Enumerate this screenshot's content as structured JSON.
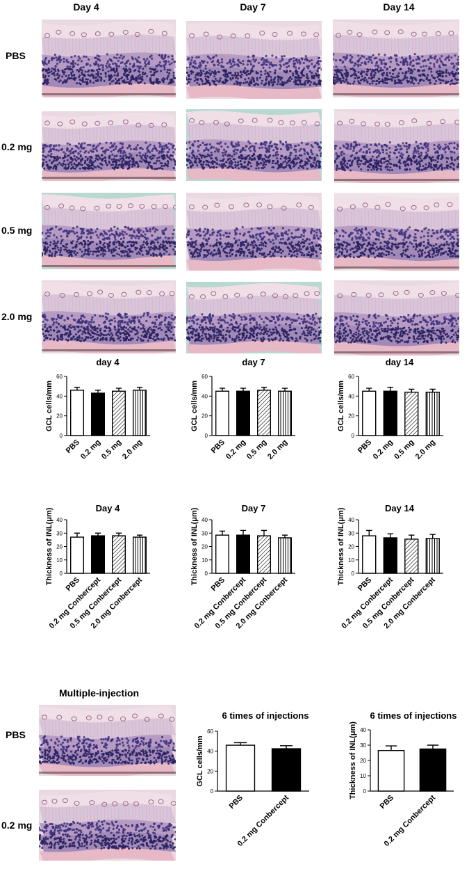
{
  "top_columns": [
    "Day 4",
    "Day 7",
    "Day 14"
  ],
  "top_rows": [
    "PBS",
    "0.2 mg",
    "0.5 mg",
    "2.0 mg"
  ],
  "multi_title": "Multiple-injection",
  "multi_rows": [
    "PBS",
    "0.2 mg"
  ],
  "colors": {
    "pink": "#e6bcc9",
    "lavender": "#c9afd0",
    "nuclei": "#3b2f7a",
    "dark_nuclei": "#2a2060",
    "teal_bg": "#b9d8d2"
  },
  "chart_data": [
    {
      "type": "bar",
      "title": "day 4",
      "ylabel": "GCL cells/mm",
      "ylim": [
        0,
        60
      ],
      "yticks": [
        0,
        20,
        40,
        60
      ],
      "categories": [
        "PBS",
        "0.2 mg",
        "0.5 mg",
        "2.0 mg"
      ],
      "values": [
        46,
        43,
        45,
        46
      ],
      "errors": [
        3,
        3,
        3,
        3
      ],
      "fills": [
        "white",
        "black",
        "diag",
        "vert"
      ]
    },
    {
      "type": "bar",
      "title": "day 7",
      "ylabel": "GCL cells/mm",
      "ylim": [
        0,
        60
      ],
      "yticks": [
        0,
        20,
        40,
        60
      ],
      "categories": [
        "PBS",
        "0.2 mg",
        "0.5 mg",
        "2.0 mg"
      ],
      "values": [
        45,
        45,
        46,
        45
      ],
      "errors": [
        3,
        3,
        3,
        3
      ],
      "fills": [
        "white",
        "black",
        "diag",
        "vert"
      ]
    },
    {
      "type": "bar",
      "title": "day 14",
      "ylabel": "GCL cells/mm",
      "ylim": [
        0,
        60
      ],
      "yticks": [
        0,
        20,
        40,
        60
      ],
      "categories": [
        "PBS",
        "0.2 mg",
        "0.5 mg",
        "2.0 mg"
      ],
      "values": [
        45,
        45,
        44,
        44
      ],
      "errors": [
        3,
        4,
        3,
        3
      ],
      "fills": [
        "white",
        "black",
        "diag",
        "vert"
      ]
    },
    {
      "type": "bar",
      "title": "Day 4",
      "ylabel": "Thickness of INL(μm)",
      "ylim": [
        0,
        40
      ],
      "yticks": [
        0,
        10,
        20,
        30,
        40
      ],
      "categories": [
        "PBS",
        "0.2 mg Conbercept",
        "0.5 mg Conbercept",
        "2.0 mg Conbercept"
      ],
      "values": [
        27,
        28,
        28,
        27
      ],
      "errors": [
        3,
        2,
        2,
        1.5
      ],
      "fills": [
        "white",
        "black",
        "diag",
        "vert"
      ]
    },
    {
      "type": "bar",
      "title": "Day 7",
      "ylabel": "Thickness of INL(μm)",
      "ylim": [
        0,
        40
      ],
      "yticks": [
        0,
        10,
        20,
        30,
        40
      ],
      "categories": [
        "PBS",
        "0.2 mg Conbercept",
        "0.5 mg Conbercept",
        "2.0 mg Conbercept"
      ],
      "values": [
        28.5,
        28.5,
        28,
        26.5
      ],
      "errors": [
        3,
        3.5,
        4,
        2
      ],
      "fills": [
        "white",
        "black",
        "diag",
        "vert"
      ]
    },
    {
      "type": "bar",
      "title": "Day 14",
      "ylabel": "Thickness of INL(μm)",
      "ylim": [
        0,
        40
      ],
      "yticks": [
        0,
        10,
        20,
        30,
        40
      ],
      "categories": [
        "PBS",
        "0.2 mg Conbercept",
        "0.5 mg Conbercept",
        "2.0 mg Conbercept"
      ],
      "values": [
        28,
        26.5,
        25.5,
        26
      ],
      "errors": [
        4,
        3,
        3,
        3
      ],
      "fills": [
        "white",
        "black",
        "diag",
        "vert"
      ]
    },
    {
      "type": "bar",
      "title": "6 times of injections",
      "ylabel": "GCL cells/mm",
      "ylim": [
        0,
        60
      ],
      "yticks": [
        0,
        20,
        40,
        60
      ],
      "categories": [
        "PBS",
        "0.2 mg Conbercept"
      ],
      "values": [
        46,
        42.5
      ],
      "errors": [
        2.5,
        3
      ],
      "fills": [
        "white",
        "black"
      ]
    },
    {
      "type": "bar",
      "title": "6 times of injections",
      "ylabel": "Thickness of INL(μm)",
      "ylim": [
        0,
        40
      ],
      "yticks": [
        0,
        10,
        20,
        30,
        40
      ],
      "categories": [
        "PBS",
        "0.2 mg Conbercept"
      ],
      "values": [
        26.5,
        27.5
      ],
      "errors": [
        3,
        2.5
      ],
      "fills": [
        "white",
        "black"
      ]
    }
  ]
}
